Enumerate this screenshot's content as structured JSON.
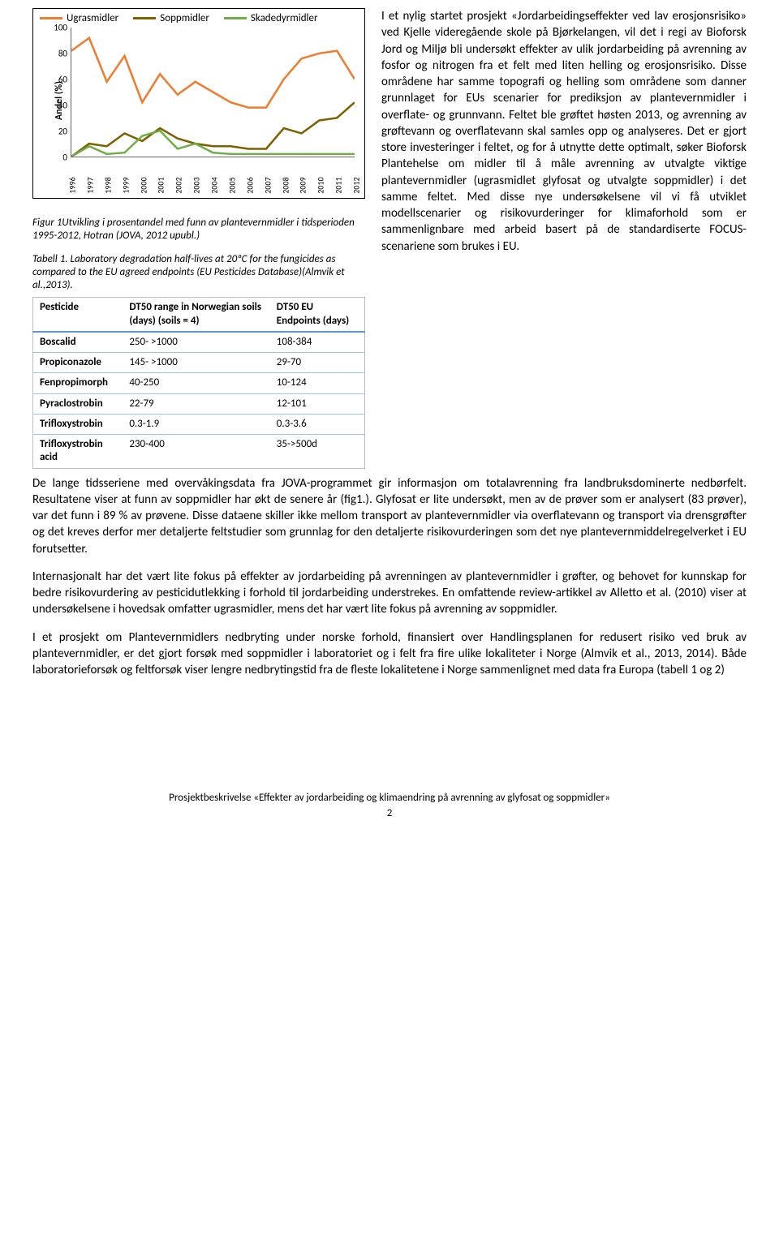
{
  "chart": {
    "type": "line",
    "legend": [
      {
        "label": "Ugrasmidler",
        "color": "#ed7d31"
      },
      {
        "label": "Soppmidler",
        "color": "#7f6000"
      },
      {
        "label": "Skadedyrmidler",
        "color": "#70ad47"
      }
    ],
    "y_label": "Andel (%)",
    "ylim": [
      0,
      100
    ],
    "ytick_step": 20,
    "x_categories": [
      "1996",
      "1997",
      "1998",
      "1999",
      "2000",
      "2001",
      "2002",
      "2003",
      "2004",
      "2005",
      "2006",
      "2007",
      "2008",
      "2009",
      "2010",
      "2011",
      "2012"
    ],
    "series": {
      "Ugrasmidler": [
        82,
        92,
        58,
        78,
        42,
        64,
        48,
        58,
        50,
        42,
        38,
        38,
        60,
        76,
        80,
        82,
        60
      ],
      "Soppmidler": [
        0,
        10,
        8,
        18,
        12,
        22,
        14,
        10,
        8,
        8,
        6,
        6,
        22,
        18,
        28,
        30,
        42
      ],
      "Skadedyrmidler": [
        0,
        8,
        2,
        3,
        16,
        20,
        6,
        10,
        3,
        2,
        2,
        2,
        2,
        2,
        2,
        2,
        2
      ]
    },
    "line_width": 2.5,
    "background": "#ffffff",
    "axis_color": "#666666"
  },
  "figure_caption": "Figur 1Utvikling i prosentandel med funn av plantevernmidler i tidsperioden 1995-2012, Hotran (JOVA, 2012 upubl.)",
  "table_caption": "Tabell 1. Laboratory degradation half-lives at 20ºC for the fungicides as compared to the EU agreed endpoints (EU Pesticides Database)(Almvik et al.,2013).",
  "table": {
    "columns": [
      "Pesticide",
      "DT50 range in Norwegian soils (days) (soils = 4)",
      "DT50 EU Endpoints (days)"
    ],
    "rows": [
      [
        "Boscalid",
        "250- >1000",
        "108-384"
      ],
      [
        "Propiconazole",
        "145- >1000",
        "29-70"
      ],
      [
        "Fenpropimorph",
        "40-250",
        "10-124"
      ],
      [
        "Pyraclostrobin",
        "22-79",
        "12-101"
      ],
      [
        "Trifloxystrobin",
        "0.3-1.9",
        "0.3-3.6"
      ],
      [
        "Trifloxystrobin acid",
        "230-400",
        "35->500d"
      ]
    ],
    "header_border_color": "#5b9bd5",
    "row_border_color": "#9dc3e6"
  },
  "right_paragraph": "I et nylig startet prosjekt «Jordarbeidingseffekter ved lav erosjonsrisiko» ved Kjelle videregående skole på Bjørkelangen, vil det i regi av Bioforsk Jord og Miljø bli undersøkt effekter av ulik jordarbeiding på avrenning av fosfor og nitrogen fra et felt med liten helling og erosjonsrisiko. Disse områdene har samme topografi og helling som områdene som danner grunnlaget for EUs scenarier for prediksjon av plantevernmidler i overflate- og grunnvann. Feltet ble grøftet høsten 2013, og avrenning av grøftevann og overflatevann skal samles opp og analyseres. Det er gjort store investeringer i feltet, og for å utnytte dette optimalt, søker Bioforsk Plantehelse om midler til å måle avrenning av utvalgte viktige plantevernmidler (ugrasmidlet glyfosat og utvalgte soppmidler) i det samme feltet. Med disse nye undersøkelsene vil vi få utviklet modellscenarier og risikovurderinger for klimaforhold som er sammenlignbare med arbeid basert på de standardiserte FOCUS-scenariene som brukes i EU.",
  "body_paragraphs": [
    "De lange tidsseriene med overvåkingsdata fra JOVA-programmet gir informasjon om totalavrenning fra landbruksdominerte nedbørfelt. Resultatene viser at funn av soppmidler har økt de senere år (fig1.). Glyfosat er lite undersøkt, men av de prøver som er analysert (83 prøver), var det funn i 89 % av prøvene. Disse dataene skiller ikke mellom transport av plantevernmidler via overflatevann og transport via drensgrøfter og det kreves derfor mer detaljerte feltstudier som grunnlag for den detaljerte risikovurderingen som det nye plantevernmiddelregelverket i EU forutsetter.",
    "Internasjonalt har det vært lite fokus på effekter av jordarbeiding på avrenningen av plantevernmidler i grøfter, og behovet for kunnskap for bedre risikovurdering av pesticidutlekking i forhold til jordarbeiding understrekes. En omfattende review-artikkel av Alletto et al. (2010) viser at undersøkelsene i hovedsak omfatter ugrasmidler, mens det har vært lite fokus på avrenning av soppmidler.",
    "I et prosjekt om Plantevernmidlers nedbryting under norske forhold, finansiert over Handlingsplanen for redusert risiko ved bruk av plantevernmidler, er det gjort forsøk med soppmidler i laboratoriet og i felt fra fire ulike lokaliteter i Norge (Almvik et al., 2013, 2014). Både laboratorieforsøk og feltforsøk viser lengre nedbrytingstid fra de fleste lokalitetene i Norge sammenlignet med data fra Europa (tabell 1 og 2)"
  ],
  "footer": {
    "title": "Prosjektbeskrivelse «Effekter av jordarbeiding og klimaendring på avrenning av glyfosat og soppmidler»",
    "page": "2"
  }
}
